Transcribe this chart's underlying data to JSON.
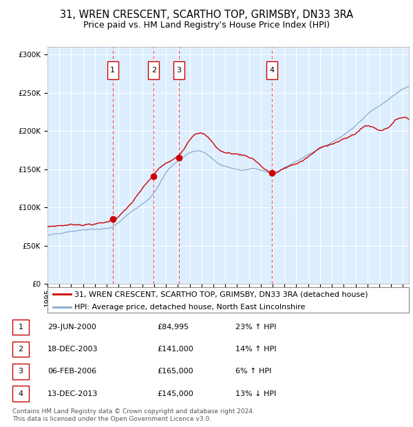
{
  "title": "31, WREN CRESCENT, SCARTHO TOP, GRIMSBY, DN33 3RA",
  "subtitle": "Price paid vs. HM Land Registry's House Price Index (HPI)",
  "footer_line1": "Contains HM Land Registry data © Crown copyright and database right 2024.",
  "footer_line2": "This data is licensed under the Open Government Licence v3.0.",
  "legend_line1": "31, WREN CRESCENT, SCARTHO TOP, GRIMSBY, DN33 3RA (detached house)",
  "legend_line2": "HPI: Average price, detached house, North East Lincolnshire",
  "transactions": [
    {
      "num": 1,
      "date": "29-JUN-2000",
      "price": 84995,
      "pct": "23%",
      "dir": "↑",
      "x_year": 2000.5
    },
    {
      "num": 2,
      "date": "18-DEC-2003",
      "price": 141000,
      "pct": "14%",
      "dir": "↑",
      "x_year": 2003.96
    },
    {
      "num": 3,
      "date": "06-FEB-2006",
      "price": 165000,
      "pct": "6%",
      "dir": "↑",
      "x_year": 2006.1
    },
    {
      "num": 4,
      "date": "13-DEC-2013",
      "price": 145000,
      "pct": "13%",
      "dir": "↓",
      "x_year": 2013.96
    }
  ],
  "background_color": "#ffffff",
  "plot_bg_color": "#ddeeff",
  "grid_color": "#ffffff",
  "red_line_color": "#cc0000",
  "blue_line_color": "#88aacc",
  "dashed_color": "#ff4444",
  "marker_color": "#cc0000",
  "box_color": "#cc0000",
  "ylim": [
    0,
    310000
  ],
  "xlim_start": 1995,
  "xlim_end": 2025.5,
  "title_fontsize": 10.5,
  "subtitle_fontsize": 9,
  "tick_fontsize": 7.5,
  "legend_fontsize": 8,
  "table_fontsize": 8,
  "footer_fontsize": 6.5
}
